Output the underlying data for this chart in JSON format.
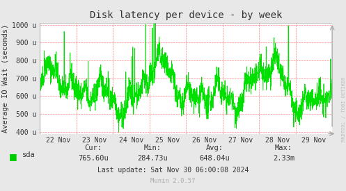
{
  "title": "Disk latency per device - by week",
  "ylabel": "Average IO Wait (seconds)",
  "bg_color": "#e8e8e8",
  "plot_bg_color": "#ffffff",
  "line_color": "#00e000",
  "grid_color": "#ff6060",
  "ytick_labels": [
    "400 u",
    "500 u",
    "600 u",
    "700 u",
    "800 u",
    "900 u",
    "1000 u"
  ],
  "ytick_values": [
    400,
    500,
    600,
    700,
    800,
    900,
    1000
  ],
  "ylim": [
    390,
    1010
  ],
  "xtick_positions": [
    0.5,
    1.5,
    2.5,
    3.5,
    4.5,
    5.5,
    6.5,
    7.5
  ],
  "xtick_labels": [
    "22 Nov",
    "23 Nov",
    "24 Nov",
    "25 Nov",
    "26 Nov",
    "27 Nov",
    "28 Nov",
    "29 Nov"
  ],
  "legend_label": "sda",
  "legend_color": "#00cc00",
  "cur_label": "Cur:",
  "cur_val": "765.60u",
  "min_label": "Min:",
  "min_val": "284.73u",
  "avg_label": "Avg:",
  "avg_val": "648.04u",
  "max_label": "Max:",
  "max_val": "2.33m",
  "last_update": "Last update: Sat Nov 30 06:00:08 2024",
  "munin_ver": "Munin 2.0.57",
  "rrdtool_label": "RRDTOOL / TOBI OETIKER"
}
